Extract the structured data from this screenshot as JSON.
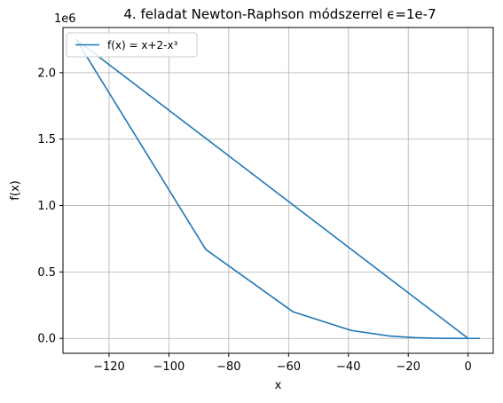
{
  "chart_data": {
    "type": "line",
    "title": "4. feladat Newton-Raphson módszerrel ϵ=1e-7",
    "xlabel": "x",
    "ylabel": "f(x)",
    "y_offset_label": "1e6",
    "xlim": [
      -135.4,
      8.4
    ],
    "ylim": [
      -0.112,
      2.34
    ],
    "x_ticks": [
      -120,
      -100,
      -80,
      -60,
      -40,
      -20,
      0
    ],
    "x_tick_labels": [
      "−120",
      "−100",
      "−80",
      "−60",
      "−40",
      "−20",
      "0"
    ],
    "y_ticks": [
      0.0,
      0.5,
      1.0,
      1.5,
      2.0
    ],
    "y_tick_labels": [
      "0.0",
      "0.5",
      "1.0",
      "1.5",
      "2.0"
    ],
    "grid": true,
    "legend_position": "top-left",
    "series": [
      {
        "name": "f(x) = x+2-x³",
        "color": "#1f77b4",
        "x": [
          0,
          -131,
          -87.7,
          -58.5,
          -39.1,
          -26.2,
          -17.6,
          -11.9,
          -8.2,
          -5.7,
          -4.1,
          -3.0,
          -2.4,
          0,
          4
        ],
        "y": [
          0,
          2.25,
          0.67,
          0.2,
          0.06,
          0.018,
          0.0055,
          0.0017,
          0.0005,
          0.00018,
          7e-05,
          3e-05,
          1e-05,
          0,
          -6e-05
        ]
      }
    ]
  }
}
